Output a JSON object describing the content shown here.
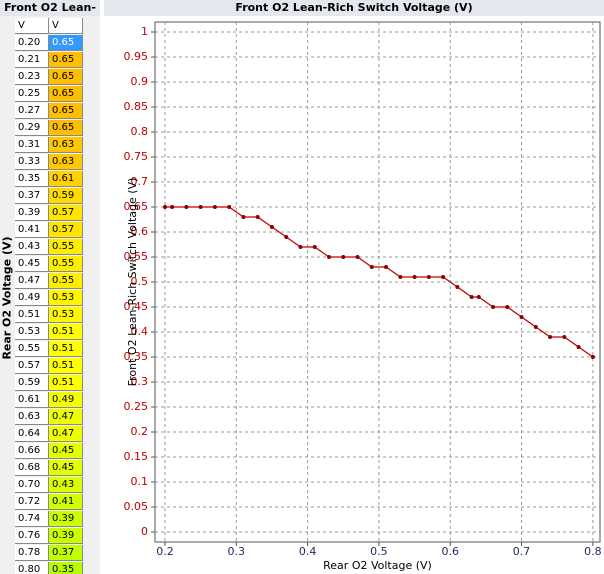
{
  "table": {
    "title": "Front O2 Lean-",
    "side_label": "Rear O2 Voltage (V)",
    "columns": [
      "V",
      "V"
    ]
  },
  "chart_data": {
    "type": "line",
    "title": "Front O2 Lean-Rich Switch Voltage (V)",
    "x_label": "Rear O2 Voltage (V)",
    "y_label": "Front O2 Lean-Rich Switch Voltage (V)",
    "x": [
      0.2,
      0.21,
      0.23,
      0.25,
      0.27,
      0.29,
      0.31,
      0.33,
      0.35,
      0.37,
      0.39,
      0.41,
      0.43,
      0.45,
      0.47,
      0.49,
      0.51,
      0.53,
      0.55,
      0.57,
      0.59,
      0.61,
      0.63,
      0.64,
      0.66,
      0.68,
      0.7,
      0.72,
      0.74,
      0.76,
      0.78,
      0.8
    ],
    "x_labels": [
      "0.20",
      "0.21",
      "0.23",
      "0.25",
      "0.27",
      "0.29",
      "0.31",
      "0.33",
      "0.35",
      "0.37",
      "0.39",
      "0.41",
      "0.43",
      "0.45",
      "0.47",
      "0.49",
      "0.51",
      "0.53",
      "0.55",
      "0.57",
      "0.59",
      "0.61",
      "0.63",
      "0.64",
      "0.66",
      "0.68",
      "0.70",
      "0.72",
      "0.74",
      "0.76",
      "0.78",
      "0.80"
    ],
    "values": [
      0.65,
      0.65,
      0.65,
      0.65,
      0.65,
      0.65,
      0.63,
      0.63,
      0.61,
      0.59,
      0.57,
      0.57,
      0.55,
      0.55,
      0.55,
      0.53,
      0.53,
      0.51,
      0.51,
      0.51,
      0.51,
      0.49,
      0.47,
      0.47,
      0.45,
      0.45,
      0.43,
      0.41,
      0.39,
      0.39,
      0.37,
      0.35
    ],
    "value_labels": [
      "0.65",
      "0.65",
      "0.65",
      "0.65",
      "0.65",
      "0.65",
      "0.63",
      "0.63",
      "0.61",
      "0.59",
      "0.57",
      "0.57",
      "0.55",
      "0.55",
      "0.55",
      "0.53",
      "0.53",
      "0.51",
      "0.51",
      "0.51",
      "0.51",
      "0.49",
      "0.47",
      "0.47",
      "0.45",
      "0.45",
      "0.43",
      "0.41",
      "0.39",
      "0.39",
      "0.37",
      "0.35"
    ],
    "color": "#c00000",
    "marker_color": "#8b0000",
    "xlim": [
      0.186,
      0.81
    ],
    "xticks": [
      0.2,
      0.3,
      0.4,
      0.5,
      0.6,
      0.7,
      0.8
    ],
    "ylim": [
      -0.02,
      1.02
    ],
    "yticks": [
      0,
      0.05,
      0.1,
      0.15,
      0.2,
      0.25,
      0.3,
      0.35,
      0.4,
      0.45,
      0.5,
      0.55,
      0.6,
      0.65,
      0.7,
      0.75,
      0.8,
      0.85,
      0.9,
      0.95,
      1
    ],
    "grid": true
  }
}
